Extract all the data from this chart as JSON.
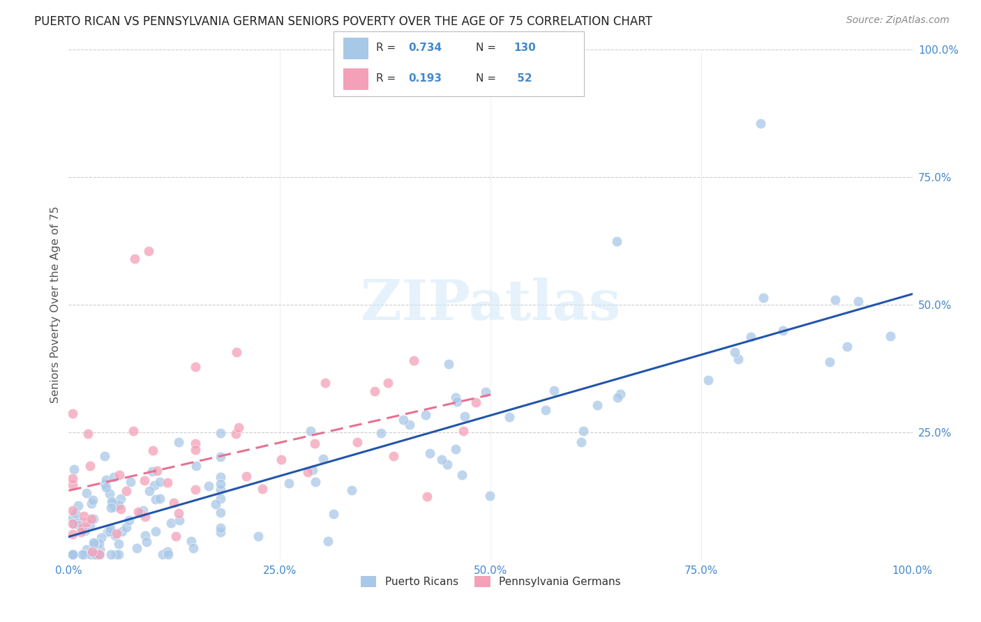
{
  "title": "PUERTO RICAN VS PENNSYLVANIA GERMAN SENIORS POVERTY OVER THE AGE OF 75 CORRELATION CHART",
  "source": "Source: ZipAtlas.com",
  "ylabel": "Seniors Poverty Over the Age of 75",
  "xlim": [
    0,
    1.0
  ],
  "ylim": [
    0,
    1.0
  ],
  "xtick_positions": [
    0,
    0.25,
    0.5,
    0.75,
    1.0
  ],
  "xtick_labels": [
    "0.0%",
    "25.0%",
    "50.0%",
    "75.0%",
    "100.0%"
  ],
  "ytick_positions": [
    0.25,
    0.5,
    0.75,
    1.0
  ],
  "ytick_labels": [
    "25.0%",
    "50.0%",
    "75.0%",
    "100.0%"
  ],
  "blue_color": "#A8C8E8",
  "pink_color": "#F4A0B8",
  "line_blue": "#2255AA",
  "line_pink": "#E87090",
  "axis_tick_color": "#4488CC",
  "R_blue": 0.734,
  "N_blue": 130,
  "R_pink": 0.193,
  "N_pink": 52,
  "blue_line_start_y": 0.055,
  "blue_line_end_y": 0.465,
  "pink_line_start_x": 0.0,
  "pink_line_start_y": 0.1,
  "pink_line_end_x": 0.5,
  "pink_line_end_y": 0.355
}
